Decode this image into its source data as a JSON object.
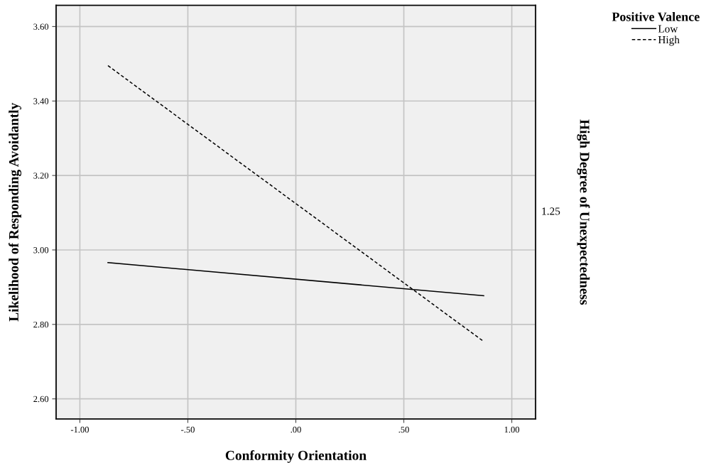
{
  "chart_data": {
    "type": "line",
    "xlabel": "Conformity Orientation",
    "ylabel": "Likelihood of Responding Avoidantly",
    "y2label": "High Degree of Unexpectedness",
    "legend_title": "Positive Valence",
    "x": [
      -0.87,
      0.87
    ],
    "series": [
      {
        "name": "Low",
        "color": "#000000",
        "line_style": "solid",
        "values": [
          2.966,
          2.877
        ]
      },
      {
        "name": "High",
        "color": "#000000",
        "line_style": "dashed",
        "values": [
          3.495,
          2.754
        ]
      }
    ],
    "xlim": [
      -1.11,
      1.11
    ],
    "xticks": [
      {
        "value": -1,
        "label": "-1.00"
      },
      {
        "value": -0.5,
        "label": "-.50"
      },
      {
        "value": 0,
        "label": ".00"
      },
      {
        "value": 0.5,
        "label": ".50"
      },
      {
        "value": 1,
        "label": "1.00"
      }
    ],
    "ylim": [
      2.546,
      3.657
    ],
    "yticks": [
      {
        "value": 2.6,
        "label": "2.60"
      },
      {
        "value": 2.8,
        "label": "2.80"
      },
      {
        "value": 3.0,
        "label": "3.00"
      },
      {
        "value": 3.2,
        "label": "3.20"
      },
      {
        "value": 3.4,
        "label": "3.40"
      },
      {
        "value": 3.6,
        "label": "3.60"
      }
    ],
    "grid": true,
    "legend": "top right",
    "marker": "none",
    "annotations": [
      "1.25"
    ]
  }
}
